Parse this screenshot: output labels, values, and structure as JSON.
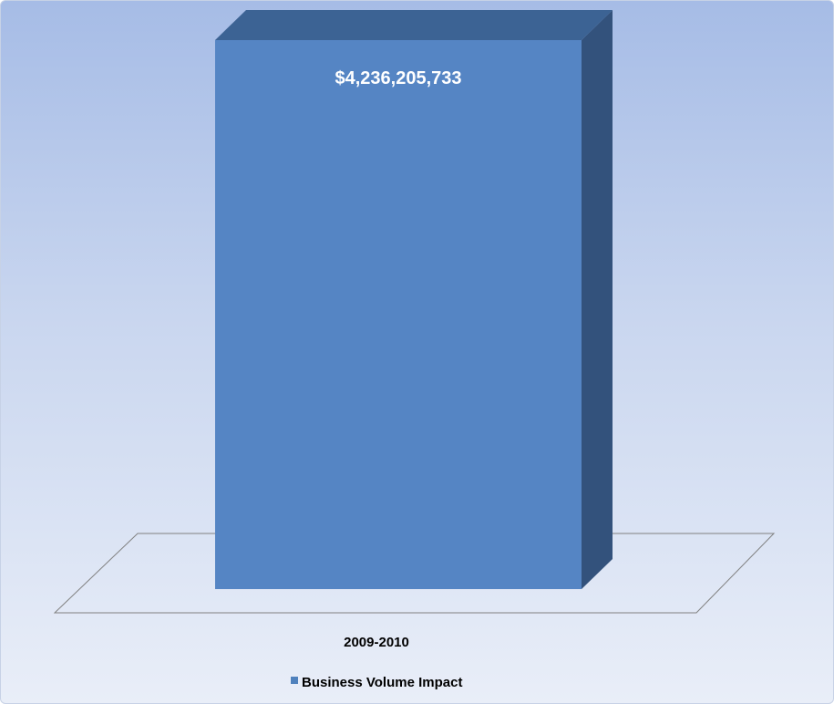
{
  "chart_data": {
    "type": "bar",
    "categories": [
      "2009-2010"
    ],
    "series": [
      {
        "name": "Business Volume Impact",
        "values": [
          4236205733
        ],
        "data_labels": [
          "$4,236,205,733"
        ]
      }
    ],
    "title": "",
    "xlabel": "",
    "ylabel": "",
    "grid": false,
    "legend_position": "bottom",
    "style": "3d-column"
  },
  "colors": {
    "bar_front": "#5585c4",
    "bar_side": "#33527c",
    "bar_top": "#3c6394",
    "floor_stroke": "#808080",
    "legend_swatch": "#4f81bd"
  }
}
